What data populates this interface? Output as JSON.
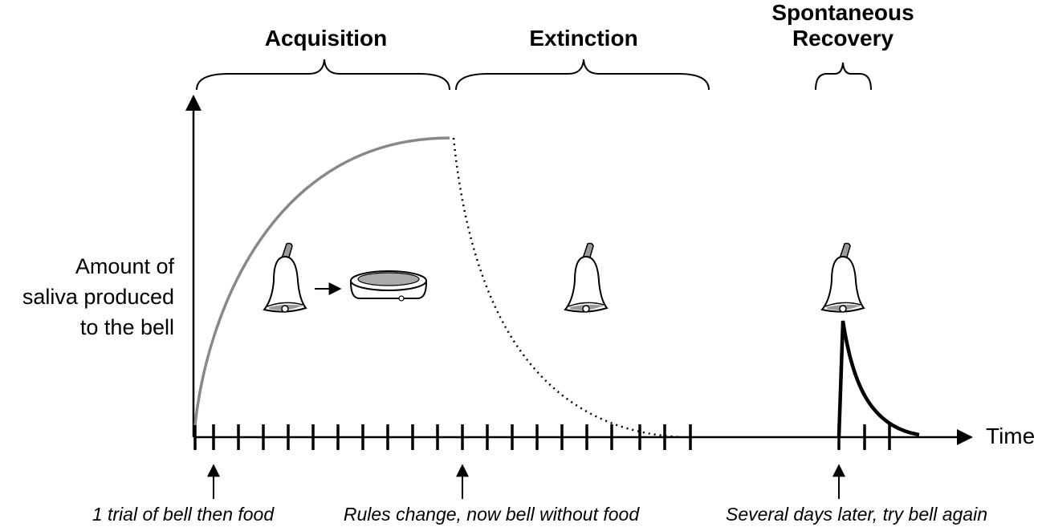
{
  "phases": [
    {
      "lines": [
        "Acquisition"
      ]
    },
    {
      "lines": [
        "Extinction"
      ]
    },
    {
      "lines": [
        "Spontaneous",
        "Recovery"
      ]
    }
  ],
  "y_axis_label": [
    "Amount of",
    "saliva produced",
    "to the bell"
  ],
  "x_axis_label": "Time",
  "annotations": [
    "1 trial of bell then food",
    "Rules change, now bell without food",
    "Several days later, try bell again"
  ]
}
